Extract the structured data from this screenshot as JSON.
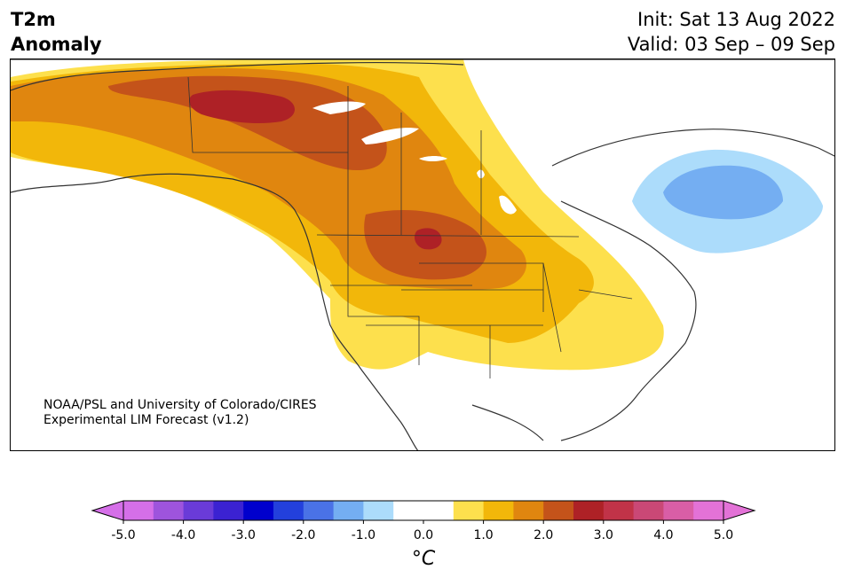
{
  "title": {
    "variable_line1": "T2m",
    "variable_line2": "Anomaly",
    "init_text": "Init: Sat 13 Aug 2022",
    "valid_text": "Valid: 03 Sep – 09 Sep"
  },
  "credit": {
    "line1": "NOAA/PSL and University of Colorado/CIRES",
    "line2": "Experimental LIM Forecast (v1.2)"
  },
  "colorbar": {
    "unit_label": "°C",
    "tick_labels": [
      "-5.0",
      "-4.0",
      "-3.0",
      "-2.0",
      "-1.0",
      "0.0",
      "1.0",
      "2.0",
      "3.0",
      "4.0",
      "5.0"
    ],
    "colors": [
      "#d56fe8",
      "#9e54dd",
      "#6a3bd8",
      "#3b22d2",
      "#0000cd",
      "#2340dc",
      "#4a72e6",
      "#74aef2",
      "#acdcfb",
      "#ffffff",
      "#ffffff",
      "#fde04d",
      "#f2b70a",
      "#e0860f",
      "#c4531a",
      "#ae2126",
      "#c13348",
      "#ca4876",
      "#d95ea6",
      "#e372d7"
    ],
    "extend_low_color": "#d56fe8",
    "extend_high_color": "#e372d7"
  },
  "legend_colors": {
    "warm_1": "#fde04d",
    "warm_2": "#f2b70a",
    "warm_3": "#e0860f",
    "warm_4": "#c4531a",
    "warm_5": "#ae2126",
    "cool_1": "#acdcfb",
    "cool_2": "#74aef2"
  }
}
